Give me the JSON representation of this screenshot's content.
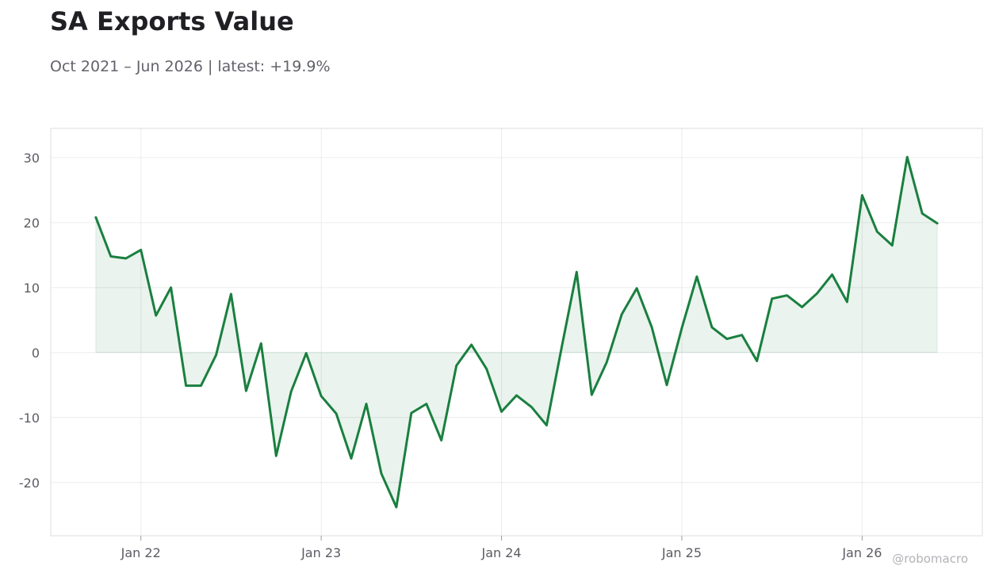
{
  "header": {
    "title": "SA Exports Value",
    "subtitle": "Oct 2021 – Jun 2026 | latest: +19.9%"
  },
  "watermark": "@robomacro",
  "colors": {
    "line": "#1a7f3f",
    "fill": "#1a7f3f",
    "grid": "#ececec",
    "frame": "#dddddd",
    "tick_text": "#5b5c63"
  },
  "chart_data": {
    "type": "area",
    "x_start": "2021-10",
    "x_step": "month",
    "values": [
      20.8,
      14.8,
      14.5,
      15.8,
      5.7,
      10.0,
      -5.1,
      -5.1,
      -0.4,
      9.0,
      -5.9,
      1.4,
      -15.9,
      -6.0,
      -0.1,
      -6.7,
      -9.4,
      -16.3,
      -7.9,
      -18.6,
      -23.8,
      -9.3,
      -7.9,
      -13.5,
      -2.0,
      1.2,
      -2.5,
      -9.1,
      -6.6,
      -8.4,
      -11.2,
      0.8,
      12.4,
      -6.5,
      -1.5,
      5.9,
      9.9,
      3.9,
      -5.0,
      3.8,
      11.7,
      3.9,
      2.1,
      2.7,
      -1.3,
      8.3,
      8.8,
      7.0,
      9.1,
      12.0,
      7.8,
      24.2,
      18.6,
      16.5,
      30.1,
      21.4,
      19.9
    ],
    "x_ticks": [
      "Jan 22",
      "Jan 23",
      "Jan 24",
      "Jan 25",
      "Jan 26"
    ],
    "x_tick_dates": [
      "2022-01",
      "2023-01",
      "2024-01",
      "2025-01",
      "2026-01"
    ],
    "y_ticks": [
      "30",
      "20",
      "10",
      "0",
      "-10",
      "-20"
    ],
    "y_tick_values": [
      30,
      20,
      10,
      0,
      -10,
      -20
    ],
    "ylim": [
      -28.2,
      34.5
    ],
    "xlim": [
      "2021-07",
      "2026-09"
    ],
    "grid": true,
    "legend": "none"
  }
}
